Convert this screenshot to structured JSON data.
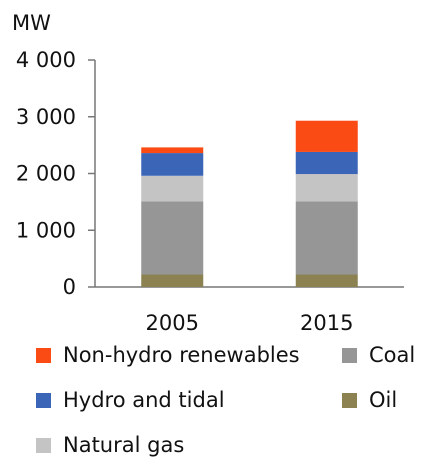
{
  "chart_data": {
    "type": "bar",
    "stacked": true,
    "title": "",
    "ylabel": "MW",
    "xlabel": "",
    "ylim": [
      0,
      4000
    ],
    "yticks": [
      0,
      1000,
      2000,
      3000,
      4000
    ],
    "ytick_labels": [
      "0",
      "1 000",
      "2 000",
      "3 000",
      "4 000"
    ],
    "categories": [
      "2005",
      "2015"
    ],
    "series": [
      {
        "name": "Oil",
        "color": "#8c8150",
        "values": [
          220,
          220
        ]
      },
      {
        "name": "Coal",
        "color": "#969696",
        "values": [
          1290,
          1290
        ]
      },
      {
        "name": "Natural gas",
        "color": "#c4c4c4",
        "values": [
          450,
          480
        ]
      },
      {
        "name": "Hydro and tidal",
        "color": "#3b66b8",
        "values": [
          400,
          390
        ]
      },
      {
        "name": "Non-hydro renewables",
        "color": "#fa4b14",
        "values": [
          100,
          550
        ]
      }
    ],
    "legend": {
      "position": "bottom",
      "order": [
        "Non-hydro renewables",
        "Coal",
        "Hydro and tidal",
        "Oil",
        "Natural gas"
      ]
    },
    "grid": false
  }
}
